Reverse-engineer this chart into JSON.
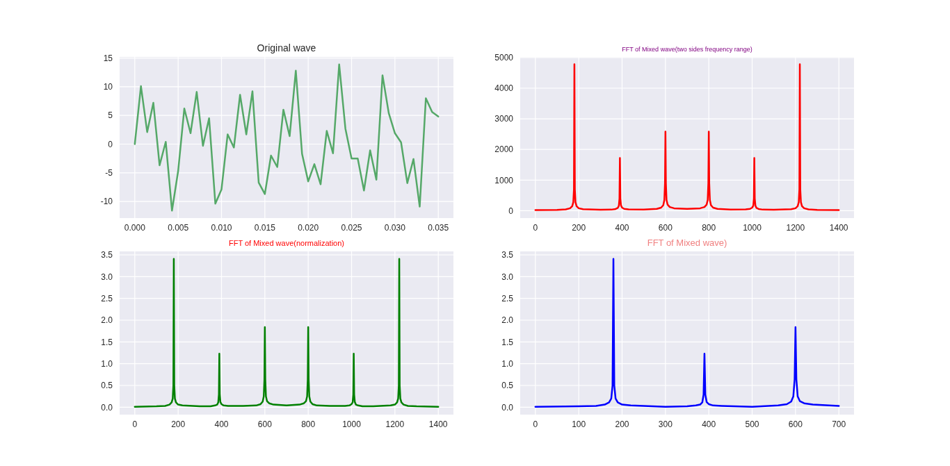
{
  "chart_data": [
    {
      "type": "line",
      "title": "Original wave",
      "x": [
        0,
        0.00071,
        0.00143,
        0.00214,
        0.00286,
        0.00357,
        0.00429,
        0.005,
        0.00571,
        0.00643,
        0.00714,
        0.00786,
        0.00857,
        0.00929,
        0.01,
        0.01071,
        0.01143,
        0.01214,
        0.01286,
        0.01357,
        0.01429,
        0.015,
        0.01571,
        0.01643,
        0.01714,
        0.01786,
        0.01857,
        0.01929,
        0.02,
        0.02071,
        0.02143,
        0.02214,
        0.02286,
        0.02357,
        0.02429,
        0.025,
        0.02571,
        0.02643,
        0.02714,
        0.02786,
        0.02857,
        0.02929,
        0.03,
        0.03071,
        0.03143,
        0.03214,
        0.03286,
        0.03357,
        0.03429,
        0.035
      ],
      "series": [
        {
          "color": "#55a868",
          "values": [
            0,
            10.1,
            2.1,
            7.2,
            -3.7,
            0.4,
            -11.6,
            -4.7,
            6.2,
            1.9,
            9.1,
            -0.3,
            4.5,
            -10.4,
            -7.9,
            1.7,
            -0.6,
            8.6,
            1.7,
            9.2,
            -6.7,
            -8.7,
            -2.0,
            -4.0,
            6.0,
            1.4,
            12.8,
            -1.7,
            -6.5,
            -3.5,
            -7.0,
            2.3,
            -1.6,
            13.9,
            2.7,
            -2.5,
            -2.5,
            -8.1,
            -1.1,
            -6.2,
            12.0,
            5.4,
            1.9,
            0.3,
            -6.8,
            -2.6,
            -10.9,
            8.0,
            5.6,
            4.8
          ]
        }
      ],
      "xlim": [
        -0.00175,
        0.03675
      ],
      "ylim": [
        -12.9,
        15.2
      ],
      "xticks": [
        {
          "value": 0,
          "label": "0.000"
        },
        0.005,
        {
          "value": 0.01,
          "label": "0.010"
        },
        0.015,
        {
          "value": 0.02,
          "label": "0.020"
        },
        0.025,
        {
          "value": 0.03,
          "label": "0.030"
        },
        0.035
      ],
      "yticks": [
        -10,
        -5,
        0,
        5,
        10,
        15
      ],
      "grid": true
    },
    {
      "type": "line",
      "title": "FFT of Mixed wave(two sides frequency range)",
      "x": [
        0,
        100,
        140,
        160,
        170,
        175,
        178,
        180,
        182,
        185,
        190,
        200,
        220,
        300,
        350,
        370,
        380,
        385,
        388,
        390,
        392,
        395,
        400,
        410,
        430,
        500,
        560,
        580,
        590,
        595,
        598,
        600,
        602,
        605,
        610,
        620,
        640,
        700,
        760,
        780,
        790,
        795,
        798,
        800,
        802,
        805,
        810,
        820,
        840,
        900,
        970,
        990,
        1000,
        1005,
        1008,
        1010,
        1012,
        1015,
        1020,
        1030,
        1050,
        1100,
        1180,
        1200,
        1210,
        1215,
        1218,
        1220,
        1222,
        1225,
        1230,
        1240,
        1260,
        1300,
        1400
      ],
      "series": [
        {
          "color": "#ff0000",
          "values": [
            20,
            25,
            45,
            80,
            150,
            280,
            700,
            4780,
            700,
            280,
            150,
            80,
            50,
            30,
            35,
            55,
            90,
            160,
            400,
            1720,
            400,
            170,
            100,
            60,
            45,
            40,
            60,
            100,
            180,
            350,
            900,
            2580,
            900,
            350,
            200,
            120,
            80,
            60,
            80,
            120,
            200,
            350,
            900,
            2580,
            900,
            350,
            180,
            100,
            60,
            40,
            45,
            60,
            100,
            160,
            400,
            1720,
            400,
            170,
            90,
            55,
            35,
            30,
            50,
            80,
            150,
            280,
            700,
            4780,
            700,
            280,
            150,
            80,
            45,
            25,
            20
          ]
        }
      ],
      "xlim": [
        -70,
        1470
      ],
      "ylim": [
        -240,
        5020
      ],
      "xticks": [
        0,
        200,
        400,
        600,
        800,
        1000,
        1200,
        1400
      ],
      "yticks": [
        0,
        1000,
        2000,
        3000,
        4000,
        5000
      ],
      "grid": true
    },
    {
      "type": "line",
      "title": "FFT of Mixed wave(normalization)",
      "x": [
        0,
        100,
        140,
        160,
        170,
        175,
        178,
        180,
        182,
        185,
        190,
        200,
        220,
        300,
        350,
        370,
        380,
        385,
        388,
        390,
        392,
        395,
        400,
        410,
        430,
        500,
        560,
        580,
        590,
        595,
        598,
        600,
        602,
        605,
        610,
        620,
        640,
        700,
        760,
        780,
        790,
        795,
        798,
        800,
        802,
        805,
        810,
        820,
        840,
        900,
        970,
        990,
        1000,
        1005,
        1008,
        1010,
        1012,
        1015,
        1020,
        1030,
        1050,
        1100,
        1180,
        1200,
        1210,
        1215,
        1218,
        1220,
        1222,
        1225,
        1230,
        1240,
        1260,
        1300,
        1400
      ],
      "series": [
        {
          "color": "#008000",
          "values": [
            0.01,
            0.02,
            0.03,
            0.06,
            0.11,
            0.2,
            0.5,
            3.41,
            0.5,
            0.2,
            0.11,
            0.06,
            0.04,
            0.02,
            0.02,
            0.04,
            0.06,
            0.11,
            0.29,
            1.23,
            0.29,
            0.12,
            0.07,
            0.04,
            0.03,
            0.03,
            0.04,
            0.07,
            0.13,
            0.25,
            0.64,
            1.84,
            0.64,
            0.25,
            0.14,
            0.09,
            0.06,
            0.04,
            0.06,
            0.09,
            0.14,
            0.25,
            0.64,
            1.84,
            0.64,
            0.25,
            0.13,
            0.07,
            0.04,
            0.03,
            0.03,
            0.04,
            0.07,
            0.11,
            0.29,
            1.23,
            0.29,
            0.12,
            0.06,
            0.04,
            0.02,
            0.02,
            0.04,
            0.06,
            0.11,
            0.2,
            0.5,
            3.41,
            0.5,
            0.2,
            0.11,
            0.06,
            0.03,
            0.02,
            0.01
          ]
        }
      ],
      "xlim": [
        -70,
        1470
      ],
      "ylim": [
        -0.17,
        3.58
      ],
      "xticks": [
        0,
        200,
        400,
        600,
        800,
        1000,
        1200,
        1400
      ],
      "yticks": [
        {
          "value": 0,
          "label": "0.0"
        },
        0.5,
        {
          "value": 1,
          "label": "1.0"
        },
        1.5,
        {
          "value": 2,
          "label": "2.0"
        },
        2.5,
        {
          "value": 3,
          "label": "3.0"
        },
        3.5
      ],
      "grid": true
    },
    {
      "type": "line",
      "title": "FFT of Mixed wave)",
      "x": [
        0,
        100,
        140,
        160,
        170,
        175,
        178,
        180,
        182,
        185,
        190,
        200,
        220,
        300,
        350,
        370,
        380,
        385,
        388,
        390,
        392,
        395,
        400,
        410,
        430,
        500,
        560,
        580,
        590,
        595,
        598,
        600,
        602,
        605,
        610,
        620,
        640,
        700
      ],
      "series": [
        {
          "color": "#0000ff",
          "values": [
            0.01,
            0.02,
            0.03,
            0.06,
            0.11,
            0.2,
            0.5,
            3.41,
            0.5,
            0.2,
            0.11,
            0.06,
            0.04,
            0.01,
            0.02,
            0.04,
            0.06,
            0.11,
            0.29,
            1.23,
            0.29,
            0.12,
            0.07,
            0.04,
            0.03,
            0.01,
            0.04,
            0.07,
            0.13,
            0.25,
            0.64,
            1.84,
            0.64,
            0.25,
            0.14,
            0.09,
            0.06,
            0.03
          ]
        }
      ],
      "xlim": [
        -35,
        735
      ],
      "ylim": [
        -0.17,
        3.58
      ],
      "xticks": [
        0,
        100,
        200,
        300,
        400,
        500,
        600,
        700
      ],
      "yticks": [
        {
          "value": 0,
          "label": "0.0"
        },
        0.5,
        {
          "value": 1,
          "label": "1.0"
        },
        1.5,
        {
          "value": 2,
          "label": "2.0"
        },
        2.5,
        {
          "value": 3,
          "label": "3.0"
        },
        3.5
      ],
      "grid": true
    }
  ]
}
